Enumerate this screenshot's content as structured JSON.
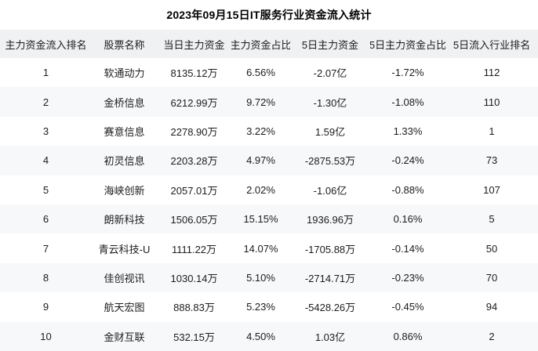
{
  "chart_data": {
    "type": "table",
    "title": "2023年09月15日IT服务行业资金流入统计",
    "headers": [
      "主力资金流入排名",
      "股票名称",
      "当日主力资金",
      "主力资金占比",
      "5日主力资金",
      "5日主力资金占比",
      "5日流入行业排名"
    ],
    "rows": [
      [
        "1",
        "软通动力",
        "8135.12万",
        "6.56%",
        "-2.07亿",
        "-1.72%",
        "112"
      ],
      [
        "2",
        "金桥信息",
        "6212.99万",
        "9.72%",
        "-1.30亿",
        "-1.08%",
        "110"
      ],
      [
        "3",
        "赛意信息",
        "2278.90万",
        "3.22%",
        "1.59亿",
        "1.33%",
        "1"
      ],
      [
        "4",
        "初灵信息",
        "2203.28万",
        "4.97%",
        "-2875.53万",
        "-0.24%",
        "73"
      ],
      [
        "5",
        "海峡创新",
        "2057.01万",
        "2.02%",
        "-1.06亿",
        "-0.88%",
        "107"
      ],
      [
        "6",
        "朗新科技",
        "1506.05万",
        "15.15%",
        "1936.96万",
        "0.16%",
        "5"
      ],
      [
        "7",
        "青云科技-U",
        "1111.22万",
        "14.07%",
        "-1705.88万",
        "-0.14%",
        "50"
      ],
      [
        "8",
        "佳创视讯",
        "1030.14万",
        "5.10%",
        "-2714.71万",
        "-0.23%",
        "70"
      ],
      [
        "9",
        "航天宏图",
        "888.83万",
        "5.23%",
        "-5428.26万",
        "-0.45%",
        "94"
      ],
      [
        "10",
        "金财互联",
        "532.15万",
        "4.50%",
        "1.03亿",
        "0.86%",
        "2"
      ]
    ],
    "layout": {
      "grid": "off",
      "legend": "none",
      "row_striping": "alternating",
      "cell_alignment": "center"
    }
  },
  "colors": {
    "header_bg": "#f0f1f3",
    "row_bg": "#ffffff",
    "row_alt_bg": "#f7f8fa",
    "text": "#1c1c1e",
    "title_text": "#000000"
  }
}
